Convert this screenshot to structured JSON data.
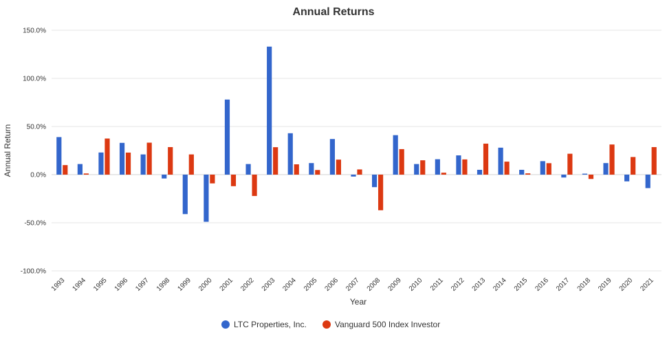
{
  "chart_data": {
    "type": "bar",
    "title": "Annual Returns",
    "xlabel": "Year",
    "ylabel": "Annual Return",
    "ylim": [
      -100,
      150
    ],
    "yticks": [
      150,
      100,
      50,
      0,
      -50,
      -100
    ],
    "ytick_labels": [
      "150.0%",
      "100.0%",
      "50.0%",
      "0.0%",
      "-50.0%",
      "-100.0%"
    ],
    "grid": true,
    "legend": "bottom",
    "categories": [
      "1993",
      "1994",
      "1995",
      "1996",
      "1997",
      "1998",
      "1999",
      "2000",
      "2001",
      "2002",
      "2003",
      "2004",
      "2005",
      "2006",
      "2007",
      "2008",
      "2009",
      "2010",
      "2011",
      "2012",
      "2013",
      "2014",
      "2015",
      "2016",
      "2017",
      "2018",
      "2019",
      "2020",
      "2021"
    ],
    "series": [
      {
        "name": "LTC Properties, Inc.",
        "color": "#3366cc",
        "values": [
          39.0,
          11.0,
          23.0,
          33.0,
          21.0,
          -4.0,
          -41.0,
          -49.0,
          78.0,
          11.0,
          133.0,
          43.0,
          12.0,
          37.0,
          -2.0,
          -13.0,
          41.0,
          11.0,
          16.0,
          20.0,
          5.0,
          28.0,
          5.0,
          14.0,
          -3.0,
          1.0,
          12.0,
          -7.0,
          -14.0
        ]
      },
      {
        "name": "Vanguard 500 Index Investor",
        "color": "#dc3912",
        "values": [
          9.9,
          1.2,
          37.5,
          22.9,
          33.2,
          28.6,
          21.0,
          -9.1,
          -12.0,
          -22.2,
          28.5,
          10.7,
          4.8,
          15.6,
          5.4,
          -37.0,
          26.5,
          14.9,
          2.0,
          15.8,
          32.2,
          13.5,
          1.3,
          11.9,
          21.7,
          -4.5,
          31.3,
          18.3,
          28.6
        ]
      }
    ]
  }
}
